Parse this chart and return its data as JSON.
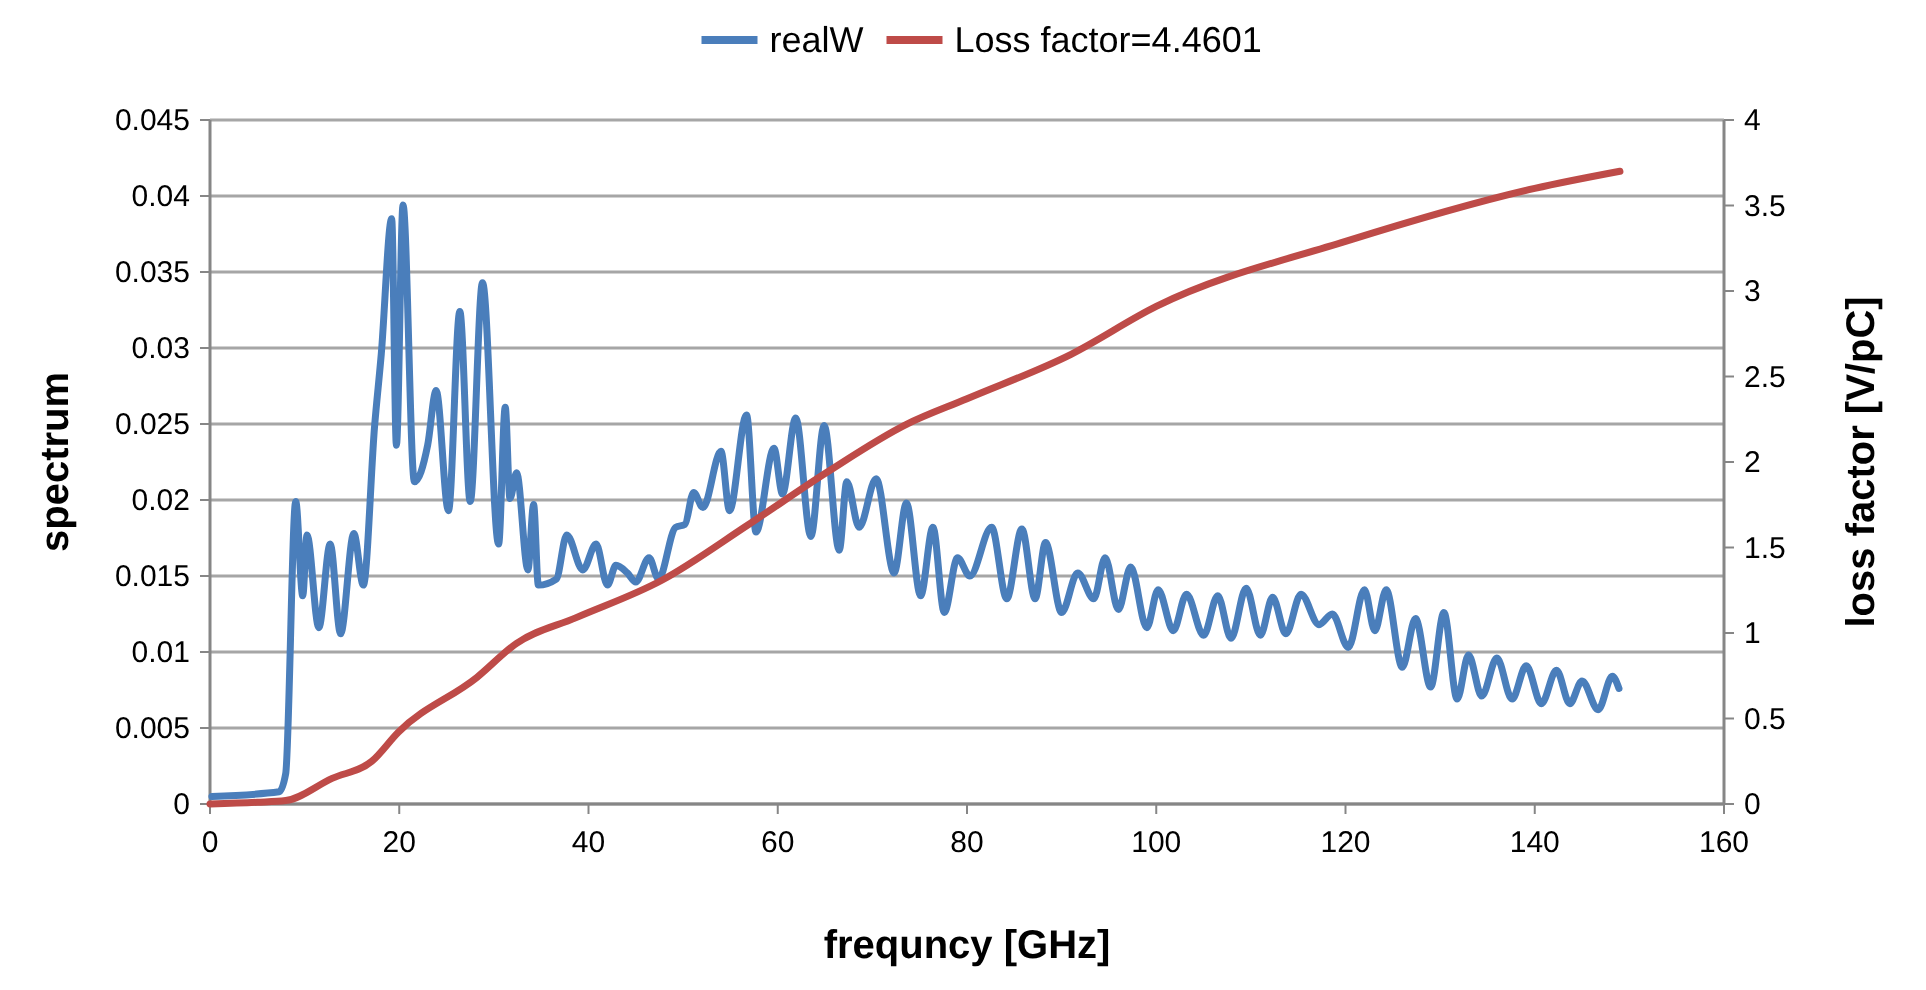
{
  "chart_data": {
    "type": "line",
    "xlabel": "frequncy [GHz]",
    "ylabel": "spectrum",
    "y2label": "loss factor [V/pC]",
    "xlim": [
      0,
      160
    ],
    "xticks": [
      0,
      20,
      40,
      60,
      80,
      100,
      120,
      140,
      160
    ],
    "ylim": [
      0,
      0.045
    ],
    "yticks": [
      0,
      0.005,
      0.01,
      0.015,
      0.02,
      0.025,
      0.03,
      0.035,
      0.04,
      0.045
    ],
    "y2lim": [
      0,
      4
    ],
    "y2ticks": [
      0,
      0.5,
      1,
      1.5,
      2,
      2.5,
      3,
      3.5,
      4
    ],
    "grid": "y",
    "legend": "top",
    "marker": "none",
    "line_style": "solid",
    "series": [
      {
        "name": "realW",
        "color": "#4a7ebb",
        "x": [
          0.2,
          7.3,
          8,
          9.06,
          9.8,
          10.25,
          11.5,
          12.7,
          13.8,
          15.2,
          16.2,
          17.4,
          18.1,
          19.2,
          19.7,
          20.4,
          21.6,
          23,
          23.9,
          25.2,
          26.4,
          27.5,
          28.8,
          30.5,
          31.2,
          31.7,
          32.4,
          33.6,
          34.2,
          34.7,
          36.6,
          37.7,
          39.4,
          40.8,
          42,
          42.9,
          44.1,
          45,
          46.4,
          47.4,
          49.2,
          50.2,
          51.1,
          52.1,
          54,
          54.9,
          56.7,
          57.7,
          59.6,
          60.5,
          61.9,
          63.5,
          64.9,
          66.5,
          67.3,
          68.6,
          70.4,
          72.3,
          73.6,
          75.1,
          76.4,
          77.6,
          79,
          80.3,
          82.6,
          84.2,
          85.8,
          87.2,
          88.3,
          90,
          91.7,
          93.4,
          94.6,
          96,
          97.3,
          99,
          100.2,
          101.8,
          103.2,
          105,
          106.5,
          107.9,
          109.5,
          111,
          112.3,
          113.7,
          115.3,
          117.2,
          118.6,
          120.3,
          122,
          123.1,
          124.3,
          126,
          127.4,
          129,
          130.4,
          131.8,
          133,
          134.4,
          136,
          137.6,
          139.1,
          140.7,
          142.3,
          143.7,
          145,
          146.7,
          148.2,
          148.9
        ],
        "values": [
          0.0005,
          0.0008,
          0.002,
          0.0199,
          0.0137,
          0.0177,
          0.0116,
          0.0171,
          0.0112,
          0.0178,
          0.0144,
          0.0249,
          0.0296,
          0.0385,
          0.0236,
          0.0394,
          0.0212,
          0.0236,
          0.0272,
          0.0193,
          0.0324,
          0.0199,
          0.0343,
          0.0171,
          0.0261,
          0.0201,
          0.0218,
          0.0154,
          0.0197,
          0.0144,
          0.0148,
          0.0177,
          0.0154,
          0.0171,
          0.0144,
          0.0157,
          0.0152,
          0.0146,
          0.0162,
          0.0148,
          0.0182,
          0.0184,
          0.0205,
          0.0195,
          0.0232,
          0.0193,
          0.0256,
          0.0179,
          0.0234,
          0.0204,
          0.0254,
          0.0176,
          0.0249,
          0.0167,
          0.0212,
          0.0182,
          0.0214,
          0.0152,
          0.0198,
          0.0137,
          0.0182,
          0.0126,
          0.0162,
          0.015,
          0.0182,
          0.0135,
          0.0181,
          0.0135,
          0.0172,
          0.0126,
          0.0152,
          0.0135,
          0.0162,
          0.0128,
          0.0156,
          0.0116,
          0.0141,
          0.0114,
          0.0138,
          0.0111,
          0.0137,
          0.0109,
          0.0142,
          0.0111,
          0.0136,
          0.0112,
          0.0138,
          0.0118,
          0.0125,
          0.0103,
          0.0141,
          0.0114,
          0.0141,
          0.009,
          0.0122,
          0.0077,
          0.0126,
          0.0069,
          0.0098,
          0.0071,
          0.0096,
          0.0069,
          0.0091,
          0.0066,
          0.0088,
          0.0066,
          0.0081,
          0.0062,
          0.0084,
          0.0076
        ]
      },
      {
        "name": "Loss factor=4.4601",
        "color": "#be4b48",
        "axis": "y2",
        "x": [
          0,
          5,
          8,
          12.9,
          17.1,
          19.9,
          28.2,
          32.4,
          38.7,
          47.8,
          56.8,
          65.2,
          73.6,
          80,
          91,
          100,
          120,
          140,
          149
        ],
        "values": [
          0,
          0.01,
          0.02,
          0.15,
          0.25,
          0.42,
          0.74,
          0.94,
          1.09,
          1.31,
          1.63,
          1.94,
          2.22,
          2.37,
          2.63,
          2.91,
          3.29,
          3.6,
          3.7
        ]
      }
    ]
  }
}
